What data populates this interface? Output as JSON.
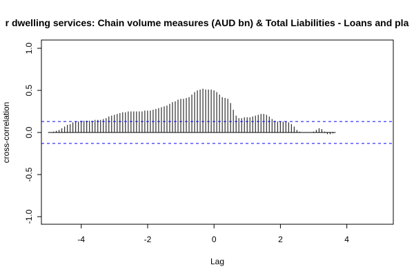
{
  "chart_data": {
    "type": "bar",
    "title": "r dwelling services: Chain volume measures (AUD bn) & Total Liabilities - Loans and pla",
    "xlabel": "Lag",
    "ylabel": "cross-correlation",
    "xlim": [
      -5.2,
      5.4
    ],
    "ylim": [
      -1.0,
      1.0
    ],
    "xticks": [
      "-4",
      "-2",
      "0",
      "2",
      "4"
    ],
    "yticks": [
      "-1.0",
      "-0.5",
      "0.0",
      "0.5",
      "1.0"
    ],
    "confidence_band": 0.13,
    "lag_step": 0.0833,
    "lag_start": -5.0,
    "values": [
      0.0,
      0.0,
      0.01,
      0.02,
      0.03,
      0.05,
      0.07,
      0.09,
      0.1,
      0.12,
      0.13,
      0.13,
      0.14,
      0.14,
      0.14,
      0.14,
      0.14,
      0.15,
      0.15,
      0.15,
      0.16,
      0.17,
      0.19,
      0.2,
      0.21,
      0.22,
      0.23,
      0.24,
      0.24,
      0.25,
      0.25,
      0.25,
      0.25,
      0.25,
      0.25,
      0.26,
      0.26,
      0.26,
      0.27,
      0.28,
      0.29,
      0.3,
      0.31,
      0.32,
      0.34,
      0.36,
      0.37,
      0.39,
      0.4,
      0.4,
      0.41,
      0.42,
      0.45,
      0.48,
      0.5,
      0.51,
      0.52,
      0.51,
      0.51,
      0.51,
      0.5,
      0.48,
      0.45,
      0.42,
      0.41,
      0.4,
      0.35,
      0.27,
      0.2,
      0.17,
      0.17,
      0.18,
      0.18,
      0.18,
      0.19,
      0.2,
      0.21,
      0.22,
      0.22,
      0.21,
      0.19,
      0.16,
      0.14,
      0.13,
      0.13,
      0.13,
      0.13,
      0.12,
      0.1,
      0.07,
      0.03,
      0.01,
      0.0,
      0.0,
      0.0,
      0.0,
      0.01,
      0.03,
      0.05,
      0.04,
      0.01,
      -0.02,
      -0.02,
      -0.01,
      0.0
    ],
    "colors": {
      "bars": "#000000",
      "band": "#0000ff",
      "frame": "#000000"
    }
  }
}
